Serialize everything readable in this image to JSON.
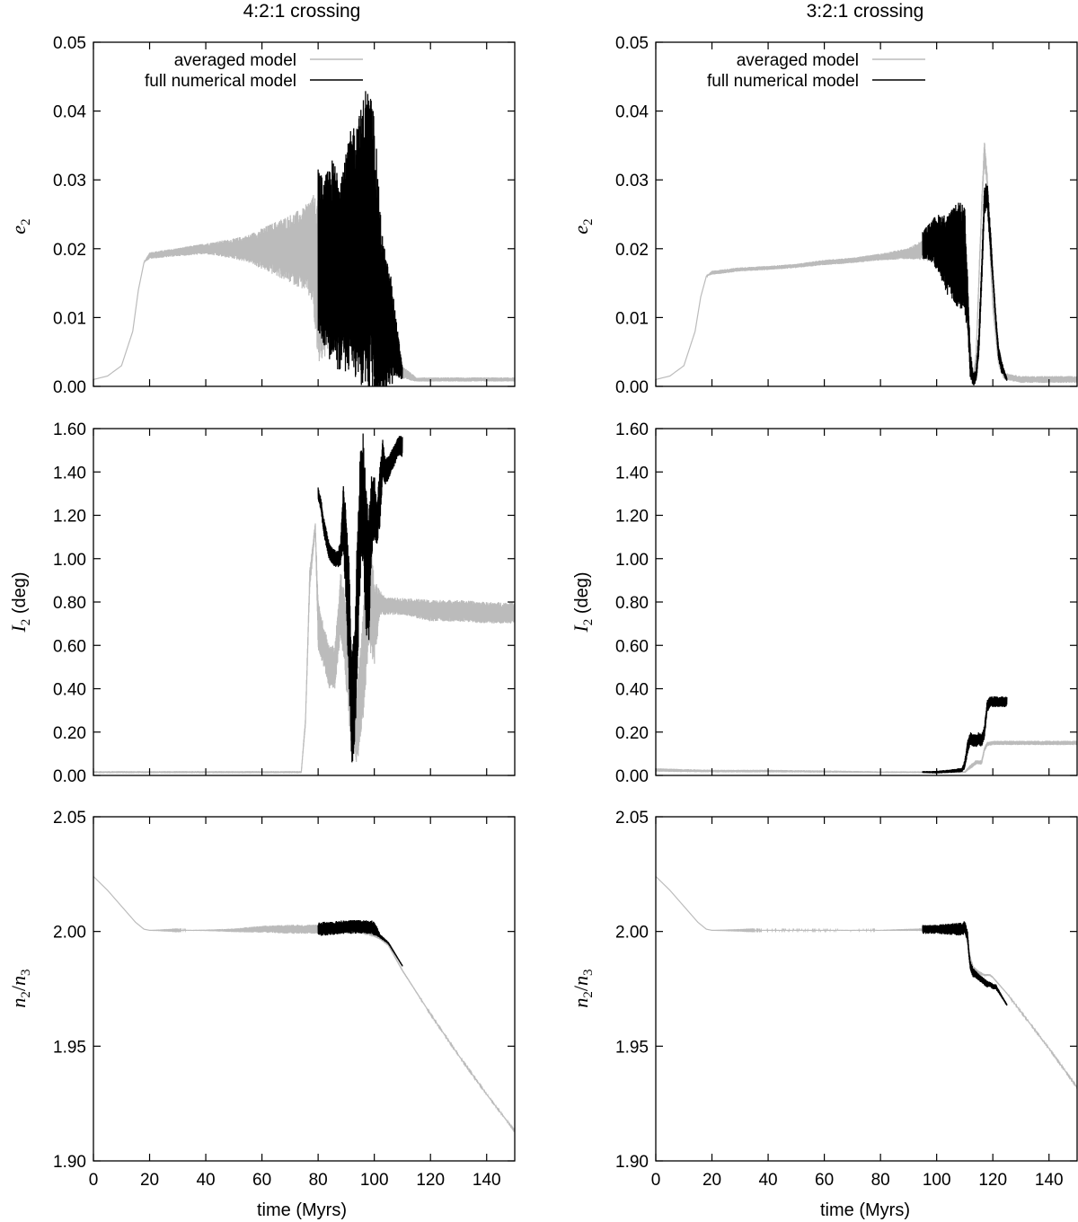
{
  "column_titles": [
    "4:2:1 crossing",
    "3:2:1 crossing"
  ],
  "xlabel": "time (Myrs)",
  "legend": {
    "averaged": "averaged model",
    "full": "full numerical model"
  },
  "colors": {
    "averaged": "#bbbbbb",
    "full": "#000000",
    "axis": "#000000"
  },
  "chart_data": [
    {
      "type": "line",
      "panel": "4:2:1 e2",
      "xlim": [
        0,
        150
      ],
      "ylim": [
        0,
        0.05
      ],
      "yticks": [
        "0.00",
        "0.01",
        "0.02",
        "0.03",
        "0.04",
        "0.05"
      ],
      "xticks": [
        "0",
        "20",
        "40",
        "60",
        "80",
        "100",
        "120",
        "140"
      ],
      "series": [
        {
          "name": "averaged model",
          "x": [
            0,
            5,
            10,
            14,
            16,
            18,
            20,
            30,
            40,
            50,
            55,
            60,
            65,
            70,
            75,
            78,
            80,
            85,
            90,
            95,
            100,
            103,
            106,
            110,
            115,
            120,
            130,
            140,
            150
          ],
          "y": [
            0.001,
            0.0015,
            0.003,
            0.008,
            0.014,
            0.018,
            0.019,
            0.0195,
            0.02,
            0.02,
            0.02,
            0.02,
            0.02,
            0.02,
            0.02,
            0.02,
            0.015,
            0.015,
            0.016,
            0.018,
            0.016,
            0.012,
            0.007,
            0.002,
            0.001,
            0.001,
            0.001,
            0.001,
            0.001
          ],
          "amp": [
            0,
            0,
            0,
            0,
            0,
            0,
            0.0005,
            0.0006,
            0.0008,
            0.0015,
            0.002,
            0.003,
            0.004,
            0.005,
            0.006,
            0.008,
            0.012,
            0.01,
            0.01,
            0.01,
            0.01,
            0.008,
            0.004,
            0.001,
            0.0003,
            0.0003,
            0.0003,
            0.0003,
            0.0003
          ]
        },
        {
          "name": "full numerical model",
          "x": [
            80,
            82,
            85,
            88,
            90,
            92,
            95,
            97,
            99,
            100,
            102,
            104,
            106,
            108,
            110
          ],
          "y": [
            0.02,
            0.018,
            0.018,
            0.017,
            0.018,
            0.02,
            0.02,
            0.022,
            0.02,
            0.018,
            0.012,
            0.009,
            0.008,
            0.005,
            0.002
          ],
          "amp": [
            0.012,
            0.012,
            0.015,
            0.015,
            0.016,
            0.018,
            0.02,
            0.022,
            0.022,
            0.022,
            0.014,
            0.01,
            0.008,
            0.004,
            0.001
          ]
        }
      ]
    },
    {
      "type": "line",
      "panel": "3:2:1 e2",
      "xlim": [
        0,
        150
      ],
      "ylim": [
        0,
        0.05
      ],
      "yticks": [
        "0.00",
        "0.01",
        "0.02",
        "0.03",
        "0.04",
        "0.05"
      ],
      "xticks": [
        "0",
        "20",
        "40",
        "60",
        "80",
        "100",
        "120",
        "140"
      ],
      "series": [
        {
          "name": "averaged model",
          "x": [
            0,
            5,
            10,
            14,
            16,
            18,
            20,
            30,
            40,
            50,
            60,
            70,
            80,
            90,
            95,
            100,
            105,
            108,
            110,
            112,
            113,
            114,
            115,
            116,
            117,
            118,
            119,
            120,
            122,
            124,
            130,
            140,
            150
          ],
          "y": [
            0.001,
            0.0015,
            0.003,
            0.008,
            0.013,
            0.016,
            0.0165,
            0.017,
            0.0172,
            0.0175,
            0.018,
            0.0183,
            0.0188,
            0.0193,
            0.0198,
            0.02,
            0.019,
            0.017,
            0.014,
            0.005,
            0.001,
            0.004,
            0.015,
            0.026,
            0.034,
            0.03,
            0.02,
            0.012,
            0.004,
            0.0015,
            0.001,
            0.001,
            0.001
          ],
          "amp": [
            0,
            0,
            0,
            0,
            0,
            0,
            0.0003,
            0.0003,
            0.0003,
            0.0003,
            0.0004,
            0.0004,
            0.0005,
            0.0008,
            0.0015,
            0.002,
            0.002,
            0.002,
            0.002,
            0.001,
            0.001,
            0.001,
            0.001,
            0.001,
            0.002,
            0.001,
            0.001,
            0.001,
            0.001,
            0.0005,
            0.0005,
            0.0005,
            0.0005
          ]
        },
        {
          "name": "full numerical model",
          "x": [
            95,
            98,
            100,
            102,
            104,
            106,
            108,
            110,
            111,
            112,
            113,
            114,
            115,
            116,
            117,
            118,
            119,
            120,
            121,
            122,
            123,
            124,
            125
          ],
          "y": [
            0.0205,
            0.021,
            0.021,
            0.02,
            0.019,
            0.019,
            0.019,
            0.018,
            0.012,
            0.003,
            0.001,
            0.0015,
            0.006,
            0.016,
            0.027,
            0.028,
            0.022,
            0.016,
            0.01,
            0.005,
            0.003,
            0.002,
            0.001
          ],
          "amp": [
            0.002,
            0.003,
            0.004,
            0.005,
            0.006,
            0.007,
            0.008,
            0.008,
            0.004,
            0.002,
            0.001,
            0.001,
            0.002,
            0.002,
            0.002,
            0.002,
            0.002,
            0.001,
            0.001,
            0.001,
            0.001,
            0.0005,
            0.0003
          ]
        }
      ]
    },
    {
      "type": "line",
      "panel": "4:2:1 I2",
      "xlim": [
        0,
        150
      ],
      "ylim": [
        0,
        1.6
      ],
      "yticks": [
        "0.00",
        "0.20",
        "0.40",
        "0.60",
        "0.80",
        "1.00",
        "1.20",
        "1.40",
        "1.60"
      ],
      "xticks": [
        "0",
        "20",
        "40",
        "60",
        "80",
        "100",
        "120",
        "140"
      ],
      "series": [
        {
          "name": "averaged model",
          "x": [
            0,
            20,
            40,
            60,
            74,
            75.5,
            77,
            79,
            80,
            82,
            84,
            86,
            88,
            90,
            92,
            94,
            96,
            98,
            100,
            102,
            104,
            106,
            110,
            120,
            130,
            140,
            150
          ],
          "y": [
            0.015,
            0.015,
            0.015,
            0.015,
            0.015,
            0.25,
            0.9,
            1.15,
            0.7,
            0.6,
            0.5,
            0.5,
            0.8,
            0.6,
            0.3,
            0.25,
            0.5,
            0.9,
            0.7,
            0.8,
            0.78,
            0.78,
            0.78,
            0.76,
            0.76,
            0.75,
            0.75
          ],
          "amp": [
            0.005,
            0.005,
            0.005,
            0.005,
            0.005,
            0.02,
            0.05,
            0.02,
            0.12,
            0.1,
            0.1,
            0.1,
            0.15,
            0.2,
            0.2,
            0.2,
            0.25,
            0.3,
            0.2,
            0.06,
            0.04,
            0.04,
            0.04,
            0.05,
            0.05,
            0.05,
            0.05
          ]
        },
        {
          "name": "full numerical model",
          "x": [
            80,
            81,
            82,
            84,
            86,
            87,
            88,
            89,
            90,
            91,
            92,
            93,
            94,
            95,
            96,
            97,
            98,
            99,
            100,
            101,
            102,
            103,
            104,
            105,
            106,
            107,
            108,
            109,
            110
          ],
          "y": [
            1.3,
            1.25,
            1.15,
            1.03,
            1.0,
            1.0,
            1.02,
            1.2,
            1.0,
            0.7,
            0.3,
            0.4,
            0.8,
            1.2,
            1.3,
            1.0,
            0.9,
            1.2,
            1.25,
            1.15,
            1.3,
            1.45,
            1.4,
            1.42,
            1.45,
            1.47,
            1.5,
            1.52,
            1.52
          ],
          "amp": [
            0.03,
            0.03,
            0.04,
            0.04,
            0.04,
            0.04,
            0.06,
            0.15,
            0.25,
            0.3,
            0.25,
            0.3,
            0.35,
            0.3,
            0.3,
            0.35,
            0.3,
            0.2,
            0.15,
            0.1,
            0.15,
            0.1,
            0.06,
            0.06,
            0.05,
            0.05,
            0.05,
            0.05,
            0.05
          ]
        }
      ]
    },
    {
      "type": "line",
      "panel": "3:2:1 I2",
      "xlim": [
        0,
        150
      ],
      "ylim": [
        0,
        1.6
      ],
      "yticks": [
        "0.00",
        "0.20",
        "0.40",
        "0.60",
        "0.80",
        "1.00",
        "1.20",
        "1.40",
        "1.60"
      ],
      "xticks": [
        "0",
        "20",
        "40",
        "60",
        "80",
        "100",
        "120",
        "140"
      ],
      "series": [
        {
          "name": "averaged model",
          "x": [
            0,
            20,
            40,
            60,
            80,
            100,
            110,
            112,
            114,
            116,
            117,
            118,
            120,
            125,
            130,
            140,
            150
          ],
          "y": [
            0.025,
            0.02,
            0.02,
            0.018,
            0.015,
            0.015,
            0.015,
            0.04,
            0.06,
            0.06,
            0.12,
            0.145,
            0.15,
            0.15,
            0.15,
            0.15,
            0.15
          ],
          "amp": [
            0.008,
            0.006,
            0.006,
            0.005,
            0.004,
            0.004,
            0.004,
            0.01,
            0.01,
            0.01,
            0.01,
            0.01,
            0.01,
            0.01,
            0.01,
            0.01,
            0.01
          ]
        },
        {
          "name": "full numerical model",
          "x": [
            95,
            100,
            105,
            109,
            110,
            111,
            112,
            113,
            114,
            115,
            116,
            117,
            118,
            119,
            120,
            121,
            122,
            123,
            124,
            125
          ],
          "y": [
            0.015,
            0.015,
            0.02,
            0.025,
            0.05,
            0.13,
            0.17,
            0.16,
            0.16,
            0.17,
            0.16,
            0.2,
            0.32,
            0.34,
            0.34,
            0.34,
            0.34,
            0.34,
            0.34,
            0.34
          ],
          "amp": [
            0.005,
            0.006,
            0.008,
            0.01,
            0.02,
            0.03,
            0.03,
            0.03,
            0.03,
            0.03,
            0.03,
            0.03,
            0.03,
            0.025,
            0.025,
            0.025,
            0.025,
            0.025,
            0.025,
            0.025
          ]
        }
      ]
    },
    {
      "type": "line",
      "panel": "4:2:1 n2/n3",
      "xlim": [
        0,
        150
      ],
      "ylim": [
        1.9,
        2.05
      ],
      "yticks": [
        "1.90",
        "1.95",
        "2.00",
        "2.05"
      ],
      "xticks": [
        "0",
        "20",
        "40",
        "60",
        "80",
        "100",
        "120",
        "140"
      ],
      "series": [
        {
          "name": "averaged model",
          "x": [
            0,
            5,
            10,
            15,
            18,
            20,
            40,
            50,
            60,
            70,
            75,
            80,
            90,
            95,
            100,
            102,
            105,
            110,
            120,
            130,
            140,
            150
          ],
          "y": [
            2.024,
            2.018,
            2.011,
            2.004,
            2.001,
            2.0005,
            2.0005,
            2.0005,
            2.001,
            2.001,
            2.001,
            2.001,
            2.001,
            2.001,
            1.999,
            1.997,
            1.994,
            1.983,
            1.964,
            1.946,
            1.929,
            1.913
          ],
          "amp": [
            0,
            0,
            0,
            0,
            0,
            0,
            0.0003,
            0.0008,
            0.0015,
            0.002,
            0.002,
            0.002,
            0.002,
            0.002,
            0.0015,
            0.0005,
            0.0003,
            0.0003,
            0.0002,
            0.0002,
            0.0002,
            0.0002
          ]
        },
        {
          "name": "full numerical model",
          "x": [
            80,
            85,
            90,
            95,
            99,
            100,
            101,
            102,
            103,
            104,
            105,
            106,
            107,
            108,
            109,
            110
          ],
          "y": [
            2.001,
            2.0015,
            2.002,
            2.002,
            2.002,
            2.001,
            2.0,
            1.998,
            1.997,
            1.996,
            1.995,
            1.993,
            1.991,
            1.989,
            1.987,
            1.985
          ],
          "amp": [
            0.003,
            0.003,
            0.003,
            0.003,
            0.003,
            0.003,
            0.002,
            0.001,
            0.0008,
            0.0006,
            0.0005,
            0.0004,
            0.0004,
            0.0003,
            0.0003,
            0.0003
          ]
        }
      ]
    },
    {
      "type": "line",
      "panel": "3:2:1 n2/n3",
      "xlim": [
        0,
        150
      ],
      "ylim": [
        1.9,
        2.05
      ],
      "yticks": [
        "1.90",
        "1.95",
        "2.00",
        "2.05"
      ],
      "xticks": [
        "0",
        "20",
        "40",
        "60",
        "80",
        "100",
        "120",
        "140"
      ],
      "series": [
        {
          "name": "averaged model",
          "x": [
            0,
            5,
            10,
            15,
            18,
            20,
            40,
            60,
            80,
            95,
            100,
            105,
            110,
            111,
            112,
            113,
            115,
            117,
            119,
            120,
            125,
            130,
            140,
            150
          ],
          "y": [
            2.024,
            2.018,
            2.011,
            2.004,
            2.001,
            2.0005,
            2.0005,
            2.0005,
            2.0005,
            2.0008,
            2.001,
            2.001,
            2.001,
            1.995,
            1.988,
            1.984,
            1.982,
            1.981,
            1.981,
            1.98,
            1.973,
            1.965,
            1.949,
            1.932
          ],
          "amp": [
            0,
            0,
            0,
            0,
            0,
            0,
            0.0002,
            0.0002,
            0.0002,
            0.0006,
            0.001,
            0.001,
            0.001,
            0.001,
            0.001,
            0.001,
            0.0008,
            0.0005,
            0.0004,
            0.0003,
            0.0002,
            0.0002,
            0.0002,
            0.0002
          ]
        },
        {
          "name": "full numerical model",
          "x": [
            95,
            100,
            105,
            109,
            110,
            111,
            111.5,
            112,
            113,
            115,
            117,
            118,
            119,
            120,
            121,
            122,
            123,
            124,
            125
          ],
          "y": [
            2.0008,
            2.001,
            2.001,
            2.001,
            2.002,
            1.998,
            1.99,
            1.985,
            1.982,
            1.98,
            1.978,
            1.977,
            1.977,
            1.976,
            1.976,
            1.974,
            1.972,
            1.97,
            1.968
          ],
          "amp": [
            0.002,
            0.002,
            0.0025,
            0.003,
            0.003,
            0.002,
            0.002,
            0.002,
            0.002,
            0.0015,
            0.0015,
            0.0015,
            0.0012,
            0.0012,
            0.0012,
            0.0008,
            0.0006,
            0.0005,
            0.0004
          ]
        }
      ]
    }
  ]
}
